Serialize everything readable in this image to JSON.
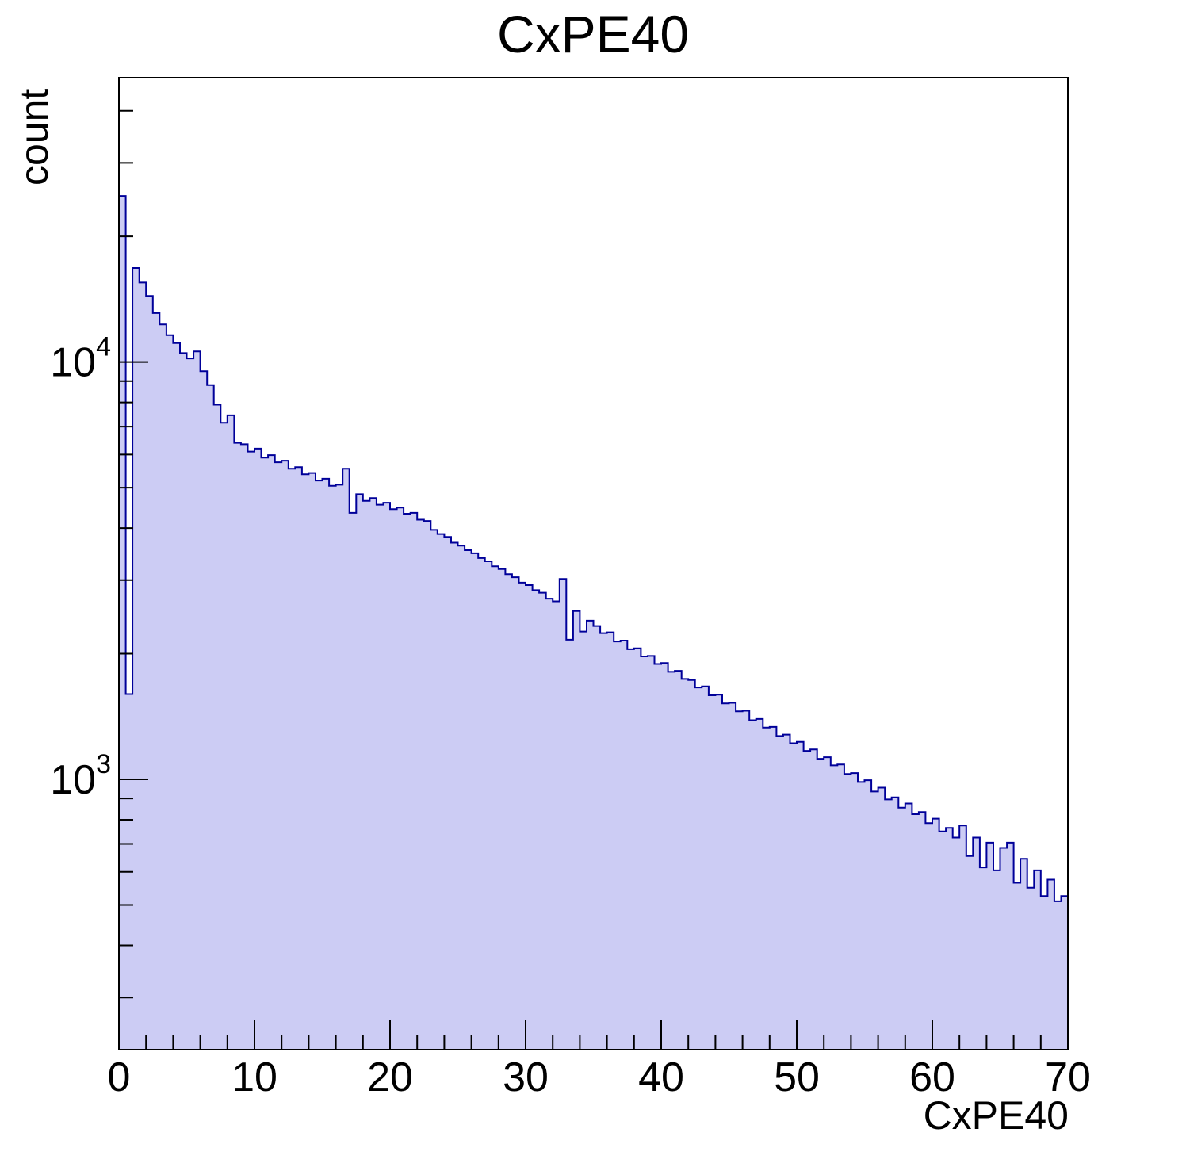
{
  "figure": {
    "title": "CxPE40",
    "x_axis": {
      "label": "CxPE40",
      "major_ticks": [
        0,
        10,
        20,
        30,
        40,
        50,
        60,
        70
      ],
      "tick_labels": [
        "0",
        "10",
        "20",
        "30",
        "40",
        "50",
        "60",
        "70"
      ],
      "minor_tick_step": 2
    },
    "y_axis": {
      "label": "count",
      "scale": "log",
      "tick_labels": [
        {
          "text": "10",
          "exponent": "3",
          "value": 1000
        },
        {
          "text": "10",
          "exponent": "4",
          "value": 10000
        }
      ]
    },
    "colors": {
      "fill": "#ccccf4",
      "line": "#000099",
      "frame": "#000000",
      "text": "#000000",
      "background": "#ffffff"
    }
  },
  "chart_data": {
    "type": "bar",
    "histogram": true,
    "title": "CxPE40",
    "xlabel": "CxPE40",
    "ylabel": "count",
    "xlim": [
      0,
      70
    ],
    "ylim": [
      225,
      48000
    ],
    "yscale": "log",
    "grid": false,
    "legend": false,
    "bin_start": 0,
    "bin_width": 0.5,
    "values": [
      25000,
      1600,
      16800,
      15500,
      14400,
      13100,
      12300,
      11600,
      11100,
      10500,
      10200,
      10600,
      9500,
      8800,
      7900,
      7150,
      7450,
      6400,
      6350,
      6100,
      6200,
      5900,
      5980,
      5750,
      5800,
      5550,
      5600,
      5380,
      5420,
      5200,
      5250,
      5050,
      5080,
      5550,
      4350,
      4820,
      4650,
      4720,
      4550,
      4600,
      4440,
      4480,
      4330,
      4350,
      4190,
      4160,
      3960,
      3870,
      3810,
      3690,
      3630,
      3540,
      3480,
      3390,
      3330,
      3240,
      3190,
      3100,
      3050,
      2960,
      2920,
      2840,
      2800,
      2710,
      2670,
      3020,
      2160,
      2530,
      2260,
      2400,
      2330,
      2240,
      2250,
      2140,
      2150,
      2050,
      2060,
      1970,
      1975,
      1890,
      1900,
      1810,
      1820,
      1740,
      1730,
      1660,
      1670,
      1590,
      1595,
      1520,
      1525,
      1455,
      1460,
      1385,
      1395,
      1330,
      1335,
      1270,
      1280,
      1220,
      1230,
      1170,
      1180,
      1120,
      1130,
      1080,
      1085,
      1030,
      1035,
      985,
      995,
      935,
      955,
      895,
      905,
      855,
      875,
      825,
      835,
      785,
      805,
      750,
      765,
      725,
      775,
      655,
      725,
      615,
      705,
      605,
      685,
      705,
      565,
      645,
      550,
      605,
      525,
      575,
      510,
      525
    ]
  }
}
